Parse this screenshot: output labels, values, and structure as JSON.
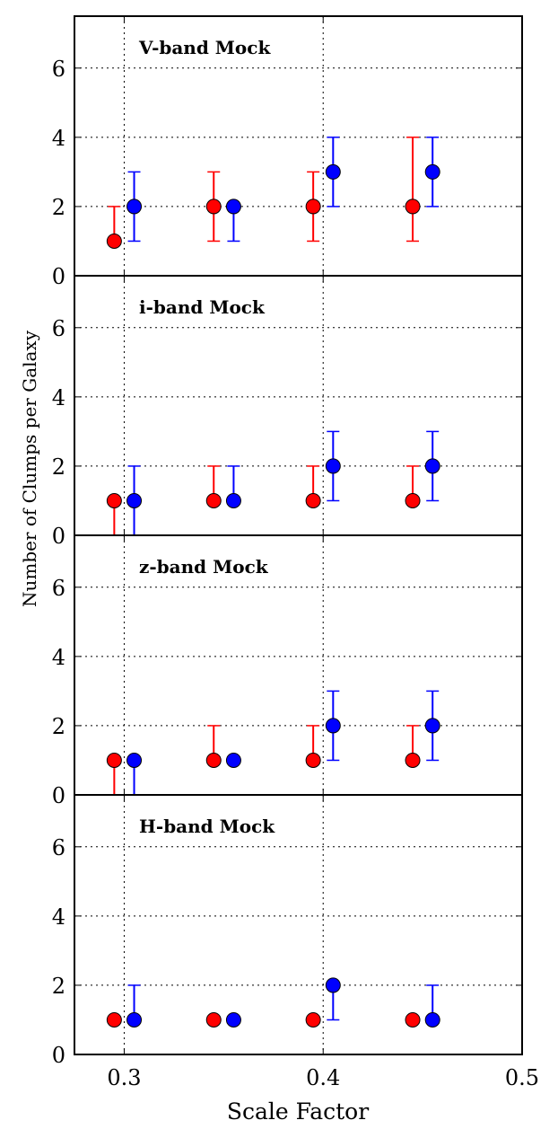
{
  "chart_data": {
    "type": "scatter",
    "xlabel": "Scale Factor",
    "ylabel": "Number of Clumps per Galaxy",
    "xlim": [
      0.275,
      0.5
    ],
    "xticks": [
      0.3,
      0.4,
      0.5
    ],
    "xtick_labels": [
      "0.3",
      "0.4",
      "0.5"
    ],
    "ylim": [
      0,
      7.5
    ],
    "yticks": [
      0,
      2,
      4,
      6
    ],
    "ytick_labels": [
      "0",
      "2",
      "4",
      "6"
    ],
    "grid": "dotted",
    "colors": {
      "red": "#ff0000",
      "blue": "#0000ff"
    },
    "panels": [
      {
        "title": "V-band Mock",
        "series": [
          {
            "name": "red",
            "color": "#ff0000",
            "points": [
              {
                "x": 0.295,
                "y": 1,
                "lo": 1,
                "hi": 2
              },
              {
                "x": 0.345,
                "y": 2,
                "lo": 1,
                "hi": 3
              },
              {
                "x": 0.395,
                "y": 2,
                "lo": 1,
                "hi": 3
              },
              {
                "x": 0.445,
                "y": 2,
                "lo": 1,
                "hi": 4
              }
            ]
          },
          {
            "name": "blue",
            "color": "#0000ff",
            "points": [
              {
                "x": 0.305,
                "y": 2,
                "lo": 1,
                "hi": 3
              },
              {
                "x": 0.355,
                "y": 2,
                "lo": 1,
                "hi": 2
              },
              {
                "x": 0.405,
                "y": 3,
                "lo": 2,
                "hi": 4
              },
              {
                "x": 0.455,
                "y": 3,
                "lo": 2,
                "hi": 4
              }
            ]
          }
        ]
      },
      {
        "title": "i-band Mock",
        "series": [
          {
            "name": "red",
            "color": "#ff0000",
            "points": [
              {
                "x": 0.295,
                "y": 1,
                "lo": 0,
                "hi": 1
              },
              {
                "x": 0.345,
                "y": 1,
                "lo": 1,
                "hi": 2
              },
              {
                "x": 0.395,
                "y": 1,
                "lo": 1,
                "hi": 2
              },
              {
                "x": 0.445,
                "y": 1,
                "lo": 1,
                "hi": 2
              }
            ]
          },
          {
            "name": "blue",
            "color": "#0000ff",
            "points": [
              {
                "x": 0.305,
                "y": 1,
                "lo": 0,
                "hi": 2
              },
              {
                "x": 0.355,
                "y": 1,
                "lo": 1,
                "hi": 2
              },
              {
                "x": 0.405,
                "y": 2,
                "lo": 1,
                "hi": 3
              },
              {
                "x": 0.455,
                "y": 2,
                "lo": 1,
                "hi": 3
              }
            ]
          }
        ]
      },
      {
        "title": "z-band Mock",
        "series": [
          {
            "name": "red",
            "color": "#ff0000",
            "points": [
              {
                "x": 0.295,
                "y": 1,
                "lo": 0,
                "hi": 1
              },
              {
                "x": 0.345,
                "y": 1,
                "lo": 1,
                "hi": 2
              },
              {
                "x": 0.395,
                "y": 1,
                "lo": 1,
                "hi": 2
              },
              {
                "x": 0.445,
                "y": 1,
                "lo": 1,
                "hi": 2
              }
            ]
          },
          {
            "name": "blue",
            "color": "#0000ff",
            "points": [
              {
                "x": 0.305,
                "y": 1,
                "lo": 0,
                "hi": 1
              },
              {
                "x": 0.355,
                "y": 1,
                "lo": 1,
                "hi": 1
              },
              {
                "x": 0.405,
                "y": 2,
                "lo": 1,
                "hi": 3
              },
              {
                "x": 0.455,
                "y": 2,
                "lo": 1,
                "hi": 3
              }
            ]
          }
        ]
      },
      {
        "title": "H-band Mock",
        "series": [
          {
            "name": "red",
            "color": "#ff0000",
            "points": [
              {
                "x": 0.295,
                "y": 1,
                "lo": 1,
                "hi": 1
              },
              {
                "x": 0.345,
                "y": 1,
                "lo": 1,
                "hi": 1
              },
              {
                "x": 0.395,
                "y": 1,
                "lo": 1,
                "hi": 1
              },
              {
                "x": 0.445,
                "y": 1,
                "lo": 1,
                "hi": 1
              }
            ]
          },
          {
            "name": "blue",
            "color": "#0000ff",
            "points": [
              {
                "x": 0.305,
                "y": 1,
                "lo": 1,
                "hi": 2
              },
              {
                "x": 0.355,
                "y": 1,
                "lo": 1,
                "hi": 1
              },
              {
                "x": 0.405,
                "y": 2,
                "lo": 1,
                "hi": 2
              },
              {
                "x": 0.455,
                "y": 1,
                "lo": 1,
                "hi": 2
              }
            ]
          }
        ]
      }
    ]
  }
}
